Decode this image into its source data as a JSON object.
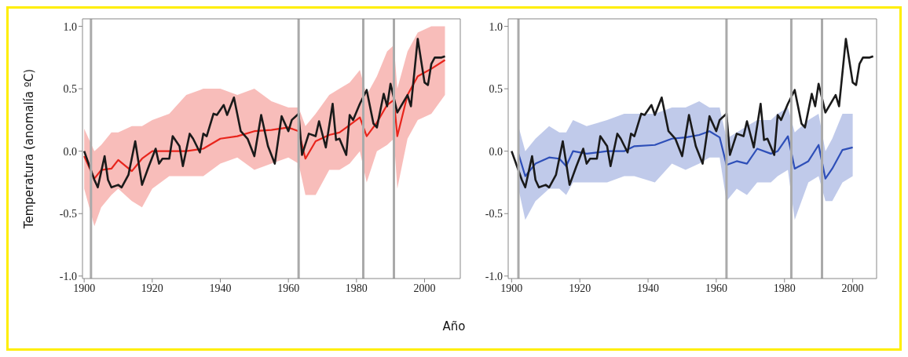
{
  "chart_data": [
    {
      "type": "line",
      "xlabel": "Año",
      "ylabel": "Temperatura (anomalía ºC)",
      "xlim": [
        1899.5,
        2010.5
      ],
      "ylim": [
        -1.02,
        1.06
      ],
      "xticks": [
        1900,
        1920,
        1940,
        1960,
        1980,
        2000
      ],
      "yticks": [
        {
          "value": -1,
          "label": "-1.0"
        },
        {
          "value": -0.5,
          "label": "-0.5"
        },
        {
          "value": 0,
          "label": "0.0"
        },
        {
          "value": 0.5,
          "label": "0.5"
        },
        {
          "value": 1,
          "label": "1.0"
        }
      ],
      "grid": false,
      "legend": false,
      "marker": "none",
      "line_style": "solid",
      "ref_lines": [
        {
          "axis": "x",
          "value": 1902,
          "color": "#aaaaaa"
        },
        {
          "axis": "x",
          "value": 1963,
          "color": "#aaaaaa"
        },
        {
          "axis": "x",
          "value": 1982,
          "color": "#aaaaaa"
        },
        {
          "axis": "x",
          "value": 1991,
          "color": "#aaaaaa"
        }
      ],
      "series": [
        {
          "color": "#e8251c",
          "x": [
            1900,
            1903,
            1905,
            1908,
            1910,
            1914,
            1917,
            1920,
            1925,
            1930,
            1935,
            1940,
            1945,
            1950,
            1955,
            1960,
            1963,
            1965,
            1968,
            1972,
            1975,
            1978,
            1981,
            1983,
            1986,
            1989,
            1991,
            1992,
            1995,
            1998,
            2002,
            2006
          ],
          "values": [
            -0.04,
            -0.22,
            -0.15,
            -0.14,
            -0.07,
            -0.16,
            -0.06,
            0.0,
            0.0,
            0.0,
            0.02,
            0.1,
            0.12,
            0.16,
            0.17,
            0.19,
            0.16,
            -0.06,
            0.08,
            0.13,
            0.15,
            0.21,
            0.27,
            0.12,
            0.23,
            0.37,
            0.41,
            0.12,
            0.45,
            0.6,
            0.66,
            0.73
          ],
          "lower": [
            -0.3,
            -0.6,
            -0.45,
            -0.35,
            -0.3,
            -0.4,
            -0.45,
            -0.3,
            -0.2,
            -0.2,
            -0.2,
            -0.1,
            -0.05,
            -0.15,
            -0.1,
            -0.05,
            -0.1,
            -0.35,
            -0.35,
            -0.15,
            -0.15,
            -0.1,
            0.0,
            -0.25,
            0.0,
            0.05,
            0.1,
            -0.3,
            0.1,
            0.25,
            0.3,
            0.45
          ],
          "upper": [
            0.18,
            0.0,
            0.05,
            0.15,
            0.15,
            0.2,
            0.2,
            0.25,
            0.3,
            0.45,
            0.5,
            0.5,
            0.45,
            0.5,
            0.4,
            0.35,
            0.35,
            0.2,
            0.3,
            0.45,
            0.5,
            0.55,
            0.65,
            0.45,
            0.6,
            0.8,
            0.85,
            0.5,
            0.8,
            0.95,
            1.0,
            1.0
          ]
        },
        {
          "color": "#1a1a1a",
          "x": [
            1900,
            1903,
            1904,
            1906,
            1907,
            1908,
            1910,
            1911,
            1913,
            1915,
            1917,
            1919,
            1921,
            1922,
            1923,
            1925,
            1926,
            1928,
            1929,
            1931,
            1932,
            1934,
            1935,
            1936,
            1938,
            1939,
            1941,
            1942,
            1944,
            1946,
            1948,
            1950,
            1952,
            1954,
            1956,
            1958,
            1960,
            1961,
            1963,
            1964,
            1966,
            1968,
            1969,
            1971,
            1973,
            1974,
            1975,
            1977,
            1978,
            1979,
            1981,
            1983,
            1985,
            1986,
            1988,
            1989,
            1990,
            1992,
            1995,
            1996,
            1998,
            2000,
            2001,
            2002,
            2003,
            2005,
            2006
          ],
          "values": [
            0.0,
            -0.23,
            -0.29,
            -0.04,
            -0.23,
            -0.29,
            -0.27,
            -0.29,
            -0.19,
            0.08,
            -0.27,
            -0.12,
            0.02,
            -0.1,
            -0.06,
            -0.06,
            0.12,
            0.04,
            -0.12,
            0.14,
            0.1,
            -0.01,
            0.14,
            0.12,
            0.3,
            0.29,
            0.37,
            0.29,
            0.43,
            0.16,
            0.1,
            -0.04,
            0.29,
            0.04,
            -0.1,
            0.28,
            0.16,
            0.25,
            0.3,
            -0.03,
            0.14,
            0.12,
            0.24,
            0.03,
            0.38,
            0.09,
            0.1,
            -0.03,
            0.29,
            0.25,
            0.38,
            0.49,
            0.22,
            0.19,
            0.46,
            0.36,
            0.54,
            0.31,
            0.45,
            0.36,
            0.9,
            0.55,
            0.53,
            0.7,
            0.75,
            0.75,
            0.76
          ]
        }
      ]
    },
    {
      "type": "line",
      "xlim": [
        1899,
        2007
      ],
      "ylim": [
        -1.02,
        1.06
      ],
      "xticks": [
        1900,
        1920,
        1940,
        1960,
        1980,
        2000
      ],
      "yticks": [
        {
          "value": -1,
          "label": "-1.0"
        },
        {
          "value": -0.5,
          "label": "-0.5"
        },
        {
          "value": 0,
          "label": "0.0"
        },
        {
          "value": 0.5,
          "label": "0.5"
        },
        {
          "value": 1,
          "label": "1.0"
        }
      ],
      "grid": false,
      "legend": false,
      "marker": "none",
      "line_style": "solid",
      "ref_lines": [
        {
          "axis": "x",
          "value": 1902,
          "color": "#aaaaaa"
        },
        {
          "axis": "x",
          "value": 1963,
          "color": "#aaaaaa"
        },
        {
          "axis": "x",
          "value": 1982,
          "color": "#aaaaaa"
        },
        {
          "axis": "x",
          "value": 1991,
          "color": "#aaaaaa"
        }
      ],
      "series": [
        {
          "color": "#2e4fb8",
          "x": [
            1902,
            1904,
            1907,
            1911,
            1914,
            1916,
            1918,
            1922,
            1928,
            1933,
            1936,
            1942,
            1947,
            1951,
            1955,
            1958,
            1961,
            1963,
            1966,
            1969,
            1972,
            1976,
            1978,
            1981,
            1983,
            1987,
            1990,
            1992,
            1994,
            1997,
            2000
          ],
          "values": [
            -0.02,
            -0.2,
            -0.1,
            -0.05,
            -0.06,
            -0.12,
            0.0,
            -0.02,
            0.0,
            0.0,
            0.04,
            0.05,
            0.1,
            0.11,
            0.13,
            0.16,
            0.11,
            -0.11,
            -0.08,
            -0.1,
            0.02,
            -0.02,
            0.0,
            0.12,
            -0.14,
            -0.08,
            0.05,
            -0.22,
            -0.14,
            0.01,
            0.03
          ],
          "lower": [
            -0.3,
            -0.55,
            -0.4,
            -0.3,
            -0.3,
            -0.35,
            -0.25,
            -0.25,
            -0.25,
            -0.2,
            -0.2,
            -0.25,
            -0.1,
            -0.15,
            -0.1,
            -0.05,
            -0.05,
            -0.4,
            -0.3,
            -0.35,
            -0.25,
            -0.25,
            -0.2,
            -0.15,
            -0.55,
            -0.25,
            -0.2,
            -0.4,
            -0.4,
            -0.25,
            -0.2
          ],
          "upper": [
            0.2,
            0.0,
            0.1,
            0.2,
            0.15,
            0.15,
            0.25,
            0.2,
            0.25,
            0.3,
            0.3,
            0.3,
            0.35,
            0.35,
            0.4,
            0.35,
            0.35,
            0.1,
            0.15,
            0.2,
            0.25,
            0.25,
            0.3,
            0.35,
            0.15,
            0.25,
            0.3,
            0.0,
            0.1,
            0.3,
            0.3
          ]
        },
        {
          "color": "#1a1a1a",
          "x": [
            1900,
            1903,
            1904,
            1906,
            1907,
            1908,
            1910,
            1911,
            1913,
            1915,
            1917,
            1919,
            1921,
            1922,
            1923,
            1925,
            1926,
            1928,
            1929,
            1931,
            1932,
            1934,
            1935,
            1936,
            1938,
            1939,
            1941,
            1942,
            1944,
            1946,
            1948,
            1950,
            1952,
            1954,
            1956,
            1958,
            1960,
            1961,
            1963,
            1964,
            1966,
            1968,
            1969,
            1971,
            1973,
            1974,
            1975,
            1977,
            1978,
            1979,
            1981,
            1983,
            1985,
            1986,
            1988,
            1989,
            1990,
            1992,
            1995,
            1996,
            1998,
            2000,
            2001,
            2002,
            2003,
            2005,
            2006
          ],
          "values": [
            0.0,
            -0.23,
            -0.29,
            -0.04,
            -0.23,
            -0.29,
            -0.27,
            -0.29,
            -0.19,
            0.08,
            -0.27,
            -0.12,
            0.02,
            -0.1,
            -0.06,
            -0.06,
            0.12,
            0.04,
            -0.12,
            0.14,
            0.1,
            -0.01,
            0.14,
            0.12,
            0.3,
            0.29,
            0.37,
            0.29,
            0.43,
            0.16,
            0.1,
            -0.04,
            0.29,
            0.04,
            -0.1,
            0.28,
            0.16,
            0.25,
            0.3,
            -0.03,
            0.14,
            0.12,
            0.24,
            0.03,
            0.38,
            0.09,
            0.1,
            -0.03,
            0.29,
            0.25,
            0.38,
            0.49,
            0.22,
            0.19,
            0.46,
            0.36,
            0.54,
            0.31,
            0.45,
            0.36,
            0.9,
            0.55,
            0.53,
            0.7,
            0.75,
            0.75,
            0.76
          ]
        }
      ]
    }
  ]
}
